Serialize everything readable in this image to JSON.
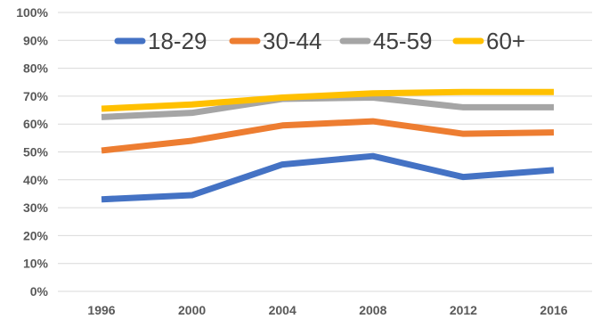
{
  "chart_data": {
    "type": "line",
    "x": [
      "1996",
      "2000",
      "2004",
      "2008",
      "2012",
      "2016"
    ],
    "y_ticks": [
      "0%",
      "10%",
      "20%",
      "30%",
      "40%",
      "50%",
      "60%",
      "70%",
      "80%",
      "90%",
      "100%"
    ],
    "ylim": [
      0,
      100
    ],
    "grid": true,
    "legend_position": "top",
    "title": "",
    "xlabel": "",
    "ylabel": "",
    "series": [
      {
        "name": "18-29",
        "color": "#4472C4",
        "values": [
          33,
          34.5,
          45.5,
          48.5,
          41,
          43.5
        ]
      },
      {
        "name": "30-44",
        "color": "#ED7D31",
        "values": [
          50.5,
          54,
          59.5,
          61,
          56.5,
          57
        ]
      },
      {
        "name": "45-59",
        "color": "#A5A5A5",
        "values": [
          62.5,
          64,
          69,
          69.5,
          66,
          66
        ]
      },
      {
        "name": "60+",
        "color": "#FFC000",
        "values": [
          65.5,
          67,
          69.5,
          71,
          71.5,
          71.5
        ]
      }
    ]
  }
}
